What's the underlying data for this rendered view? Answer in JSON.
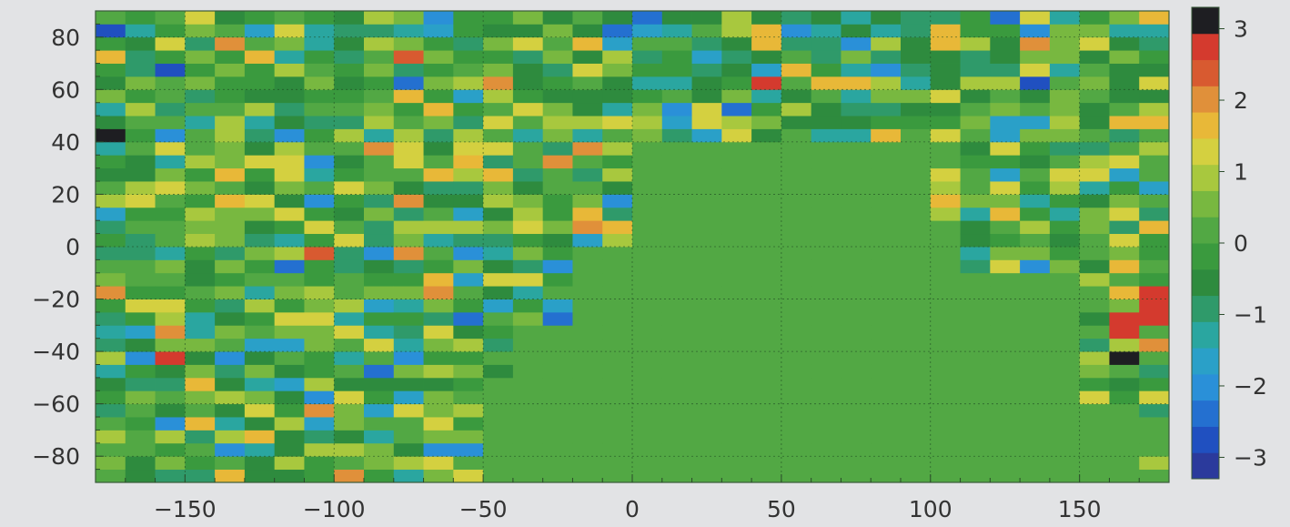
{
  "chart_data": {
    "type": "heatmap",
    "title": "",
    "xlabel": "",
    "ylabel": "",
    "xlim": [
      -180,
      180
    ],
    "ylim": [
      -90,
      90
    ],
    "cell_width": 10,
    "cell_height": 5,
    "x_ticks": [
      -150,
      -100,
      -50,
      0,
      50,
      100,
      150
    ],
    "x_tick_labels": [
      "−150",
      "−100",
      "−50",
      "0",
      "50",
      "100",
      "150"
    ],
    "y_ticks": [
      80,
      60,
      40,
      20,
      0,
      -20,
      -40,
      -60,
      -80
    ],
    "y_tick_labels": [
      "80",
      "60",
      "40",
      "20",
      "0",
      "−20",
      "−40",
      "−60",
      "−80"
    ],
    "grid": true,
    "colorbar": {
      "vmin": -3.3,
      "vmax": 3.3,
      "ticks": [
        3,
        2,
        1,
        0,
        -1,
        -2,
        -3
      ],
      "tick_labels": [
        "3",
        "2",
        "1",
        "0",
        "−1",
        "−2",
        "−3"
      ],
      "colors": [
        "#2b3a9c",
        "#2050c0",
        "#2470d0",
        "#2a90d8",
        "#2aa0c8",
        "#2aa6a0",
        "#2f9a6a",
        "#2e8b3e",
        "#3a9a3e",
        "#52a844",
        "#78b840",
        "#a8c83e",
        "#d4d040",
        "#e8b838",
        "#e0903a",
        "#d85a30",
        "#d43a2e",
        "#1e1e22"
      ]
    },
    "notes": "Gridded longitude-latitude anomaly field; cells over the large central region (approx. 0–100 longitude and 45S–40N) and lower-right are near zero; noisy values elsewhere range about −2.5 to 3.2."
  }
}
